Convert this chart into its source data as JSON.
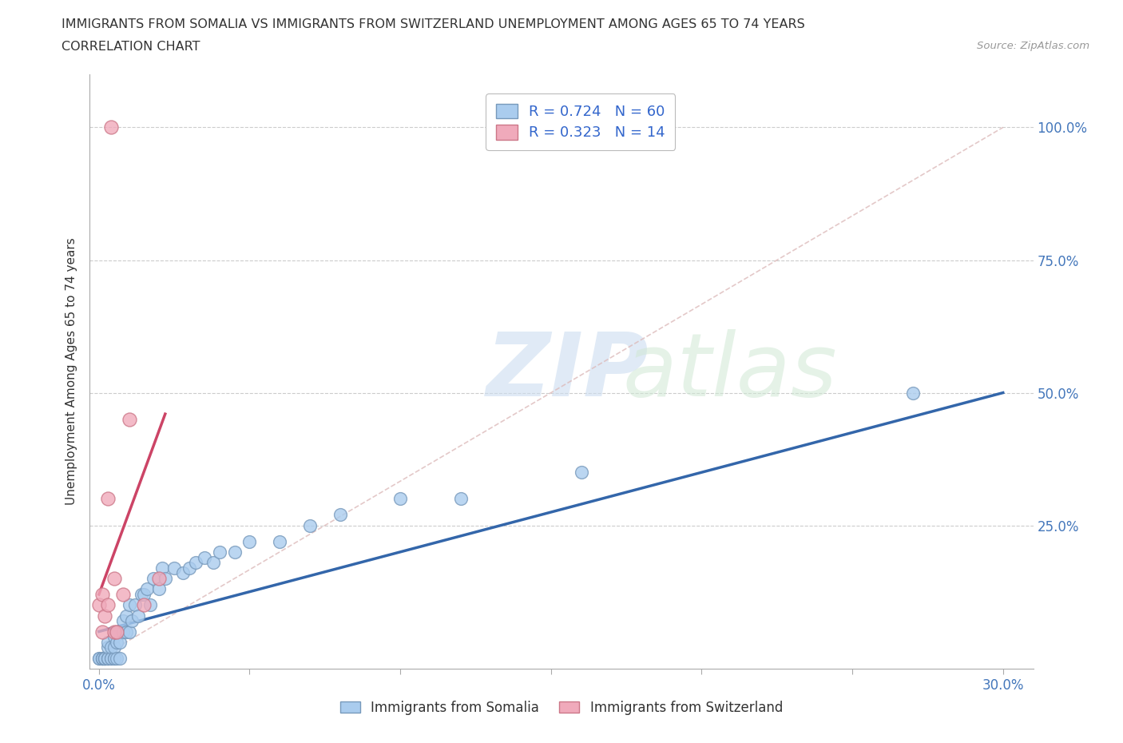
{
  "title_line1": "IMMIGRANTS FROM SOMALIA VS IMMIGRANTS FROM SWITZERLAND UNEMPLOYMENT AMONG AGES 65 TO 74 YEARS",
  "title_line2": "CORRELATION CHART",
  "source": "Source: ZipAtlas.com",
  "ylabel": "Unemployment Among Ages 65 to 74 years",
  "xlabel_somalia": "Immigrants from Somalia",
  "xlabel_switzerland": "Immigrants from Switzerland",
  "xlim": [
    -0.003,
    0.31
  ],
  "ylim": [
    -0.02,
    1.1
  ],
  "xtick_pos": [
    0.0,
    0.05,
    0.1,
    0.15,
    0.2,
    0.25,
    0.3
  ],
  "xtick_labels": [
    "0.0%",
    "",
    "",
    "",
    "",
    "",
    "30.0%"
  ],
  "ytick_pos": [
    0.0,
    0.25,
    0.5,
    0.75,
    1.0
  ],
  "ytick_labels": [
    "",
    "25.0%",
    "50.0%",
    "75.0%",
    "100.0%"
  ],
  "somalia_color": "#aaccee",
  "somalia_edge_color": "#7799bb",
  "switzerland_color": "#f0aabb",
  "switzerland_edge_color": "#cc7788",
  "somalia_R": 0.724,
  "somalia_N": 60,
  "switzerland_R": 0.323,
  "switzerland_N": 14,
  "reg_somalia_color": "#3366aa",
  "reg_switzerland_color": "#cc4466",
  "diagonal_color": "#ddbbbb",
  "background_color": "#ffffff",
  "somalia_x": [
    0.0,
    0.0,
    0.001,
    0.001,
    0.001,
    0.001,
    0.002,
    0.002,
    0.002,
    0.002,
    0.003,
    0.003,
    0.003,
    0.003,
    0.003,
    0.004,
    0.004,
    0.004,
    0.005,
    0.005,
    0.005,
    0.005,
    0.006,
    0.006,
    0.006,
    0.007,
    0.007,
    0.008,
    0.008,
    0.009,
    0.009,
    0.01,
    0.01,
    0.011,
    0.012,
    0.013,
    0.014,
    0.015,
    0.016,
    0.017,
    0.018,
    0.02,
    0.021,
    0.022,
    0.025,
    0.028,
    0.03,
    0.032,
    0.035,
    0.038,
    0.04,
    0.045,
    0.05,
    0.06,
    0.07,
    0.08,
    0.1,
    0.12,
    0.16,
    0.27
  ],
  "somalia_y": [
    0.0,
    0.0,
    0.0,
    0.0,
    0.0,
    0.0,
    0.0,
    0.0,
    0.0,
    0.0,
    0.0,
    0.0,
    0.0,
    0.02,
    0.03,
    0.0,
    0.0,
    0.02,
    0.0,
    0.0,
    0.02,
    0.04,
    0.0,
    0.03,
    0.05,
    0.0,
    0.03,
    0.05,
    0.07,
    0.05,
    0.08,
    0.05,
    0.1,
    0.07,
    0.1,
    0.08,
    0.12,
    0.12,
    0.13,
    0.1,
    0.15,
    0.13,
    0.17,
    0.15,
    0.17,
    0.16,
    0.17,
    0.18,
    0.19,
    0.18,
    0.2,
    0.2,
    0.22,
    0.22,
    0.25,
    0.27,
    0.3,
    0.3,
    0.35,
    0.5
  ],
  "switzerland_x": [
    0.0,
    0.001,
    0.001,
    0.002,
    0.003,
    0.003,
    0.004,
    0.005,
    0.005,
    0.006,
    0.008,
    0.01,
    0.015,
    0.02
  ],
  "switzerland_y": [
    0.1,
    0.05,
    0.12,
    0.08,
    0.1,
    0.3,
    1.0,
    0.05,
    0.15,
    0.05,
    0.12,
    0.45,
    0.1,
    0.15
  ]
}
